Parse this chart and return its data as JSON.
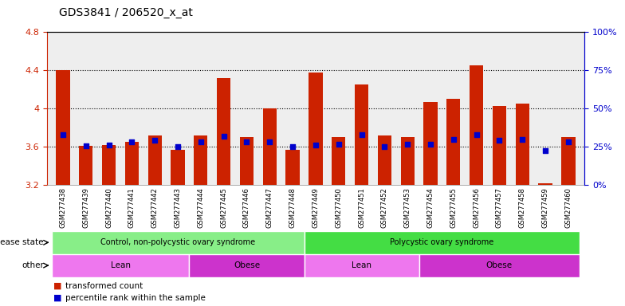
{
  "title": "GDS3841 / 206520_x_at",
  "samples": [
    "GSM277438",
    "GSM277439",
    "GSM277440",
    "GSM277441",
    "GSM277442",
    "GSM277443",
    "GSM277444",
    "GSM277445",
    "GSM277446",
    "GSM277447",
    "GSM277448",
    "GSM277449",
    "GSM277450",
    "GSM277451",
    "GSM277452",
    "GSM277453",
    "GSM277454",
    "GSM277455",
    "GSM277456",
    "GSM277457",
    "GSM277458",
    "GSM277459",
    "GSM277460"
  ],
  "red_values": [
    4.4,
    3.61,
    3.62,
    3.65,
    3.72,
    3.57,
    3.72,
    4.32,
    3.7,
    4.0,
    3.57,
    4.38,
    3.7,
    4.25,
    3.72,
    3.7,
    4.07,
    4.1,
    4.45,
    4.03,
    4.05,
    3.22,
    3.7
  ],
  "blue_values": [
    3.73,
    3.61,
    3.62,
    3.65,
    3.67,
    3.6,
    3.65,
    3.71,
    3.65,
    3.65,
    3.6,
    3.62,
    3.63,
    3.73,
    3.6,
    3.63,
    3.63,
    3.68,
    3.73,
    3.67,
    3.68,
    3.56,
    3.65
  ],
  "ymin": 3.2,
  "ymax": 4.8,
  "yticks": [
    3.2,
    3.6,
    4.0,
    4.4,
    4.8
  ],
  "ytick_labels": [
    "3.2",
    "3.6",
    "4",
    "4.4",
    "4.8"
  ],
  "right_yticks": [
    0,
    25,
    50,
    75,
    100
  ],
  "right_ylabels": [
    "0%",
    "25%",
    "50%",
    "75%",
    "100%"
  ],
  "grid_lines": [
    3.6,
    4.0,
    4.4
  ],
  "bar_color": "#CC2200",
  "dot_color": "#0000CC",
  "bar_width": 0.6,
  "disease_state_groups": [
    {
      "label": "Control, non-polycystic ovary syndrome",
      "start": 0,
      "end": 11,
      "color": "#88EE88"
    },
    {
      "label": "Polycystic ovary syndrome",
      "start": 11,
      "end": 23,
      "color": "#44DD44"
    }
  ],
  "other_groups": [
    {
      "label": "Lean",
      "start": 0,
      "end": 6,
      "color": "#EE77EE"
    },
    {
      "label": "Obese",
      "start": 6,
      "end": 11,
      "color": "#CC33CC"
    },
    {
      "label": "Lean",
      "start": 11,
      "end": 16,
      "color": "#EE77EE"
    },
    {
      "label": "Obese",
      "start": 16,
      "end": 23,
      "color": "#CC33CC"
    }
  ],
  "legend_items": [
    {
      "label": "transformed count",
      "color": "#CC2200"
    },
    {
      "label": "percentile rank within the sample",
      "color": "#0000CC"
    }
  ],
  "bg_color": "#FFFFFF",
  "plot_area_bg": "#EEEEEE",
  "label_row_bg": "#CCCCCC"
}
